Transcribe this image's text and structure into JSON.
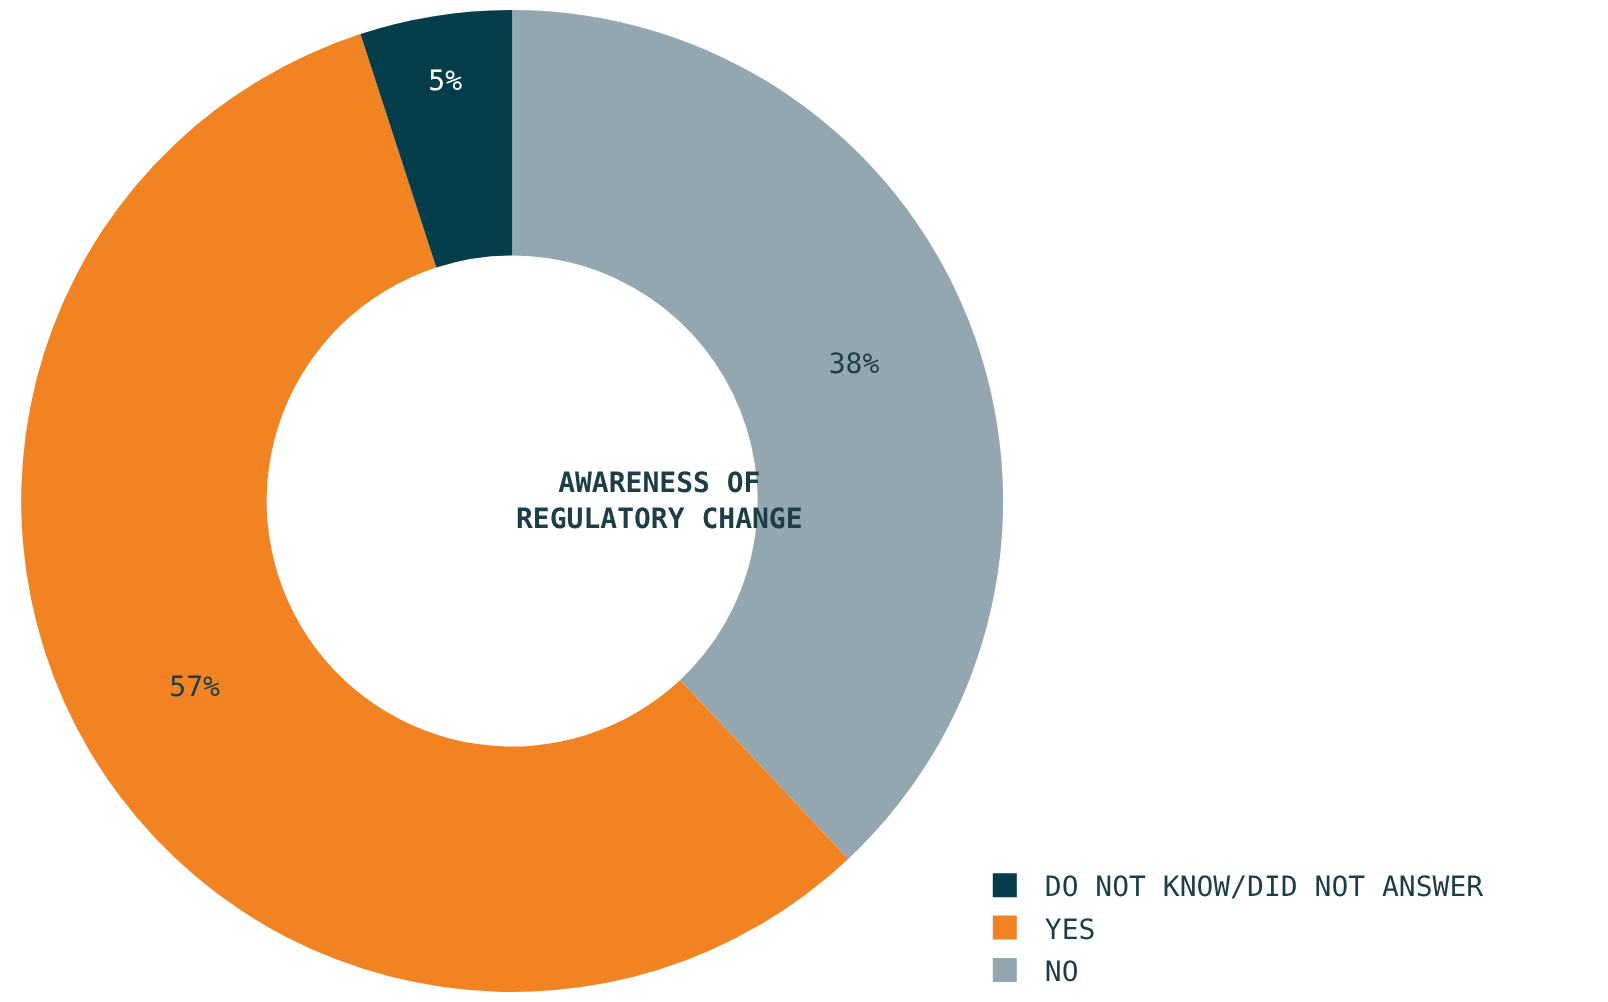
{
  "chart_data": {
    "type": "donut",
    "categories": [
      "NO",
      "YES",
      "DO NOT KNOW/DID NOT ANSWER"
    ],
    "values": [
      38,
      57,
      5
    ],
    "value_labels": [
      "38%",
      "57%",
      "5%"
    ],
    "colors": [
      "#94a7b0",
      "#f28322",
      "#053d4a"
    ],
    "annotations": [
      "AWARENESS OF\nREGULATORY CHANGE"
    ],
    "legend": "bottom right"
  }
}
